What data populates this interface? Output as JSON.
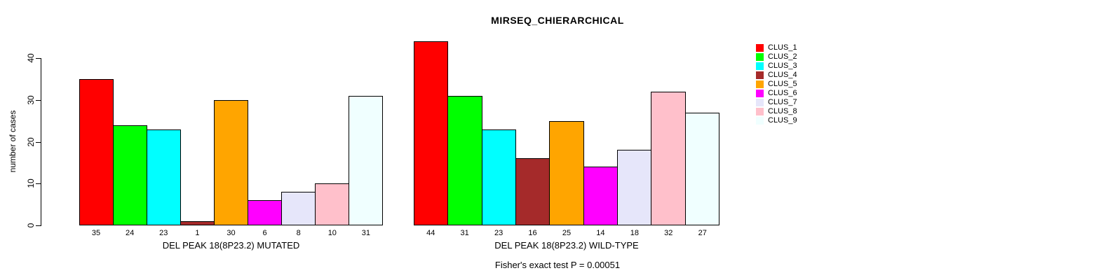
{
  "title": "MIRSEQ_CHIERARCHICAL",
  "y_axis": {
    "label": "number of cases",
    "ticks": [
      0,
      10,
      20,
      30,
      40
    ]
  },
  "footer": "Fisher's exact test P = 0.00051",
  "legend": {
    "items": [
      {
        "label": "CLUS_1",
        "color": "#FF0000"
      },
      {
        "label": "CLUS_2",
        "color": "#00FF00"
      },
      {
        "label": "CLUS_3",
        "color": "#00FFFF"
      },
      {
        "label": "CLUS_4",
        "color": "#A52A2A"
      },
      {
        "label": "CLUS_5",
        "color": "#FFA500"
      },
      {
        "label": "CLUS_6",
        "color": "#FF00FF"
      },
      {
        "label": "CLUS_7",
        "color": "#E6E6FA"
      },
      {
        "label": "CLUS_8",
        "color": "#FFC0CB"
      },
      {
        "label": "CLUS_9",
        "color": "#F0FFFF"
      }
    ]
  },
  "chart_data": {
    "type": "bar",
    "title": "MIRSEQ_CHIERARCHICAL",
    "ylabel": "number of cases",
    "ylim": [
      0,
      44
    ],
    "yticks": [
      0,
      10,
      20,
      30,
      40
    ],
    "grid": false,
    "legend_position": "right",
    "annotation": "Fisher's exact test P = 0.00051",
    "cluster_names": [
      "CLUS_1",
      "CLUS_2",
      "CLUS_3",
      "CLUS_4",
      "CLUS_5",
      "CLUS_6",
      "CLUS_7",
      "CLUS_8",
      "CLUS_9"
    ],
    "bar_colors": [
      "#FF0000",
      "#00FF00",
      "#00FFFF",
      "#A52A2A",
      "#FFA500",
      "#FF00FF",
      "#E6E6FA",
      "#FFC0CB",
      "#F0FFFF"
    ],
    "panels": [
      {
        "xlabel": "DEL PEAK 18(8P23.2) MUTATED",
        "values": [
          35,
          24,
          23,
          1,
          30,
          6,
          8,
          10,
          31
        ],
        "bar_value_labels": [
          "35",
          "24",
          "23",
          "1",
          "30",
          "6",
          "8",
          "10",
          "31"
        ]
      },
      {
        "xlabel": "DEL PEAK 18(8P23.2) WILD-TYPE",
        "values": [
          44,
          31,
          23,
          16,
          25,
          14,
          18,
          32,
          27
        ],
        "bar_value_labels": [
          "44",
          "31",
          "23",
          "16",
          "25",
          "14",
          "18",
          "32",
          "27"
        ]
      }
    ]
  }
}
